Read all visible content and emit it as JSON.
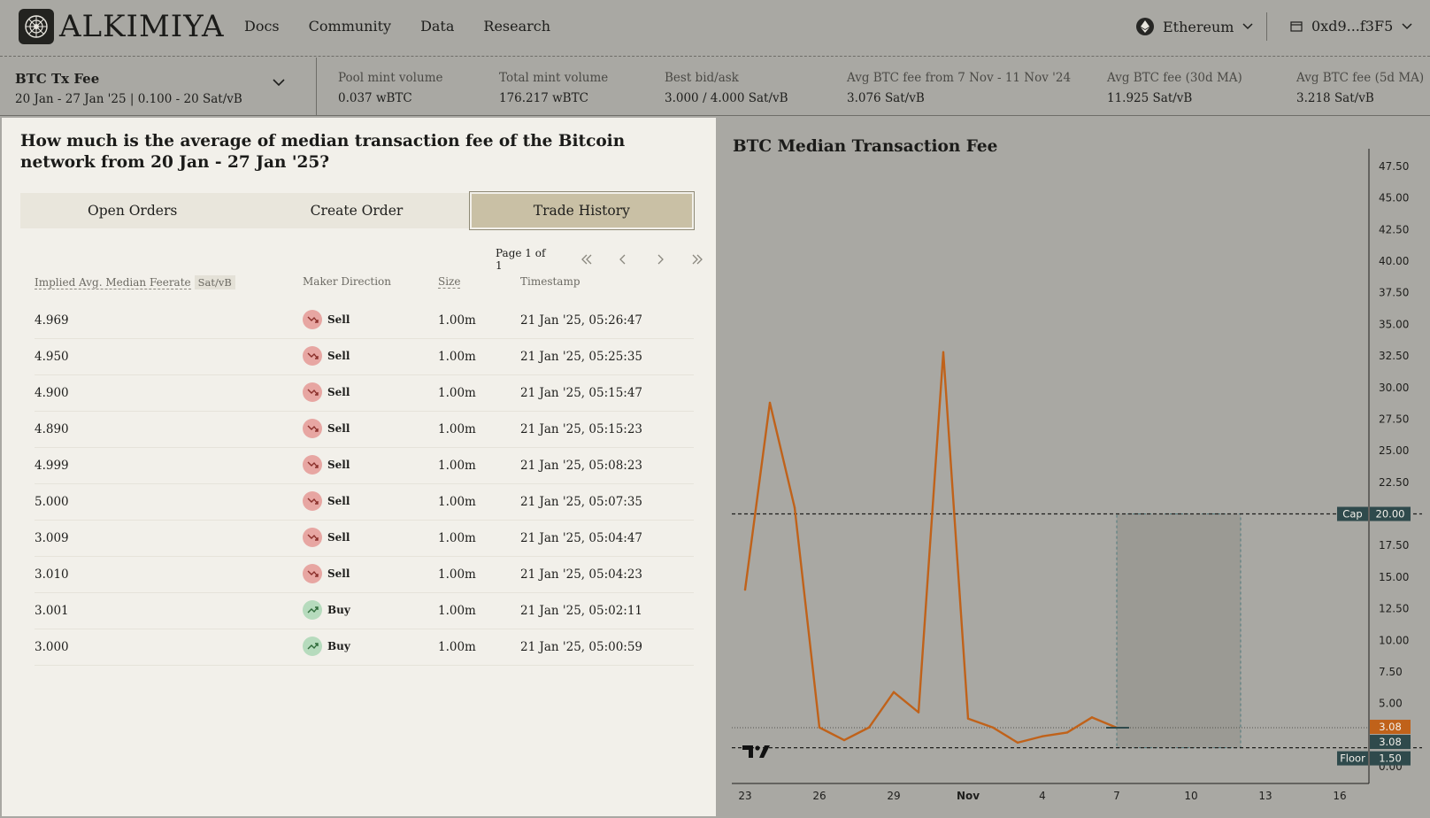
{
  "nav": {
    "brand": "ALKIMIYA",
    "links": [
      "Docs",
      "Community",
      "Data",
      "Research"
    ],
    "network": "Ethereum",
    "wallet": "0xd9...f3F5"
  },
  "market": {
    "name": "BTC Tx Fee",
    "range": "20 Jan - 27 Jan '25 | 0.100 - 20 Sat/vB",
    "stats": [
      {
        "label": "Pool mint volume",
        "value": "0.037 wBTC"
      },
      {
        "label": "Total mint volume",
        "value": "176.217 wBTC"
      },
      {
        "label": "Best bid/ask",
        "value": "3.000 / 4.000 Sat/vB"
      },
      {
        "label": "Avg BTC fee from 7 Nov - 11 Nov '24",
        "value": "3.076 Sat/vB"
      },
      {
        "label": "Avg BTC fee (30d MA)",
        "value": "11.925 Sat/vB"
      },
      {
        "label": "Avg BTC fee (5d MA)",
        "value": "3.218 Sat/vB"
      }
    ]
  },
  "panel": {
    "question": "How much is the average of median transaction fee of the Bitcoin network from 20 Jan - 27 Jan '25?",
    "tabs": [
      "Open Orders",
      "Create Order",
      "Trade History"
    ],
    "active_tab": "Trade History",
    "pager": "Page 1 of 1"
  },
  "table": {
    "headers": {
      "feerate": "Implied Avg. Median Feerate",
      "unit": "Sat/vB",
      "direction": "Maker Direction",
      "size": "Size",
      "timestamp": "Timestamp"
    },
    "rows": [
      {
        "feerate": "4.969",
        "direction": "Sell",
        "size": "1.00m",
        "timestamp": "21 Jan '25, 05:26:47"
      },
      {
        "feerate": "4.950",
        "direction": "Sell",
        "size": "1.00m",
        "timestamp": "21 Jan '25, 05:25:35"
      },
      {
        "feerate": "4.900",
        "direction": "Sell",
        "size": "1.00m",
        "timestamp": "21 Jan '25, 05:15:47"
      },
      {
        "feerate": "4.890",
        "direction": "Sell",
        "size": "1.00m",
        "timestamp": "21 Jan '25, 05:15:23"
      },
      {
        "feerate": "4.999",
        "direction": "Sell",
        "size": "1.00m",
        "timestamp": "21 Jan '25, 05:08:23"
      },
      {
        "feerate": "5.000",
        "direction": "Sell",
        "size": "1.00m",
        "timestamp": "21 Jan '25, 05:07:35"
      },
      {
        "feerate": "3.009",
        "direction": "Sell",
        "size": "1.00m",
        "timestamp": "21 Jan '25, 05:04:47"
      },
      {
        "feerate": "3.010",
        "direction": "Sell",
        "size": "1.00m",
        "timestamp": "21 Jan '25, 05:04:23"
      },
      {
        "feerate": "3.001",
        "direction": "Buy",
        "size": "1.00m",
        "timestamp": "21 Jan '25, 05:02:11"
      },
      {
        "feerate": "3.000",
        "direction": "Buy",
        "size": "1.00m",
        "timestamp": "21 Jan '25, 05:00:59"
      }
    ]
  },
  "colors": {
    "line": "#c0621a",
    "sell": "#e7a6a2",
    "buy": "#b6dbbd",
    "cap_badge": "#2f4a4c"
  },
  "chart_data": {
    "type": "line",
    "title": "BTC Median Transaction Fee",
    "x_day_index": [
      0,
      1,
      2,
      3,
      4,
      5,
      6,
      7,
      8,
      9,
      10,
      11,
      12,
      13,
      14,
      15
    ],
    "values": [
      14.0,
      28.8,
      20.5,
      3.1,
      2.1,
      3.1,
      5.9,
      4.3,
      32.8,
      3.8,
      3.1,
      1.9,
      2.4,
      2.7,
      3.9,
      3.08
    ],
    "x_ticks": [
      {
        "day": 0,
        "label": "23"
      },
      {
        "day": 3,
        "label": "26"
      },
      {
        "day": 6,
        "label": "29"
      },
      {
        "day": 9,
        "label": "Nov"
      },
      {
        "day": 12,
        "label": "4"
      },
      {
        "day": 15,
        "label": "7"
      },
      {
        "day": 18,
        "label": "10"
      },
      {
        "day": 21,
        "label": "13"
      },
      {
        "day": 24,
        "label": "16"
      }
    ],
    "y_ticks": [
      "0.00",
      "5.00",
      "7.50",
      "10.00",
      "12.50",
      "15.00",
      "17.50",
      "22.50",
      "25.00",
      "27.50",
      "30.00",
      "32.50",
      "35.00",
      "37.50",
      "40.00",
      "42.50",
      "45.00",
      "47.50"
    ],
    "ylim": [
      0,
      47.5
    ],
    "xlim_days": [
      0,
      26
    ],
    "cap": {
      "label": "Cap",
      "value": "20.00",
      "y": 20
    },
    "floor": {
      "label": "Floor",
      "value": "1.50",
      "y": 1.5
    },
    "last_value": {
      "label": "3.08",
      "y": 3.08
    },
    "settlement_window_days": [
      15,
      20
    ]
  }
}
